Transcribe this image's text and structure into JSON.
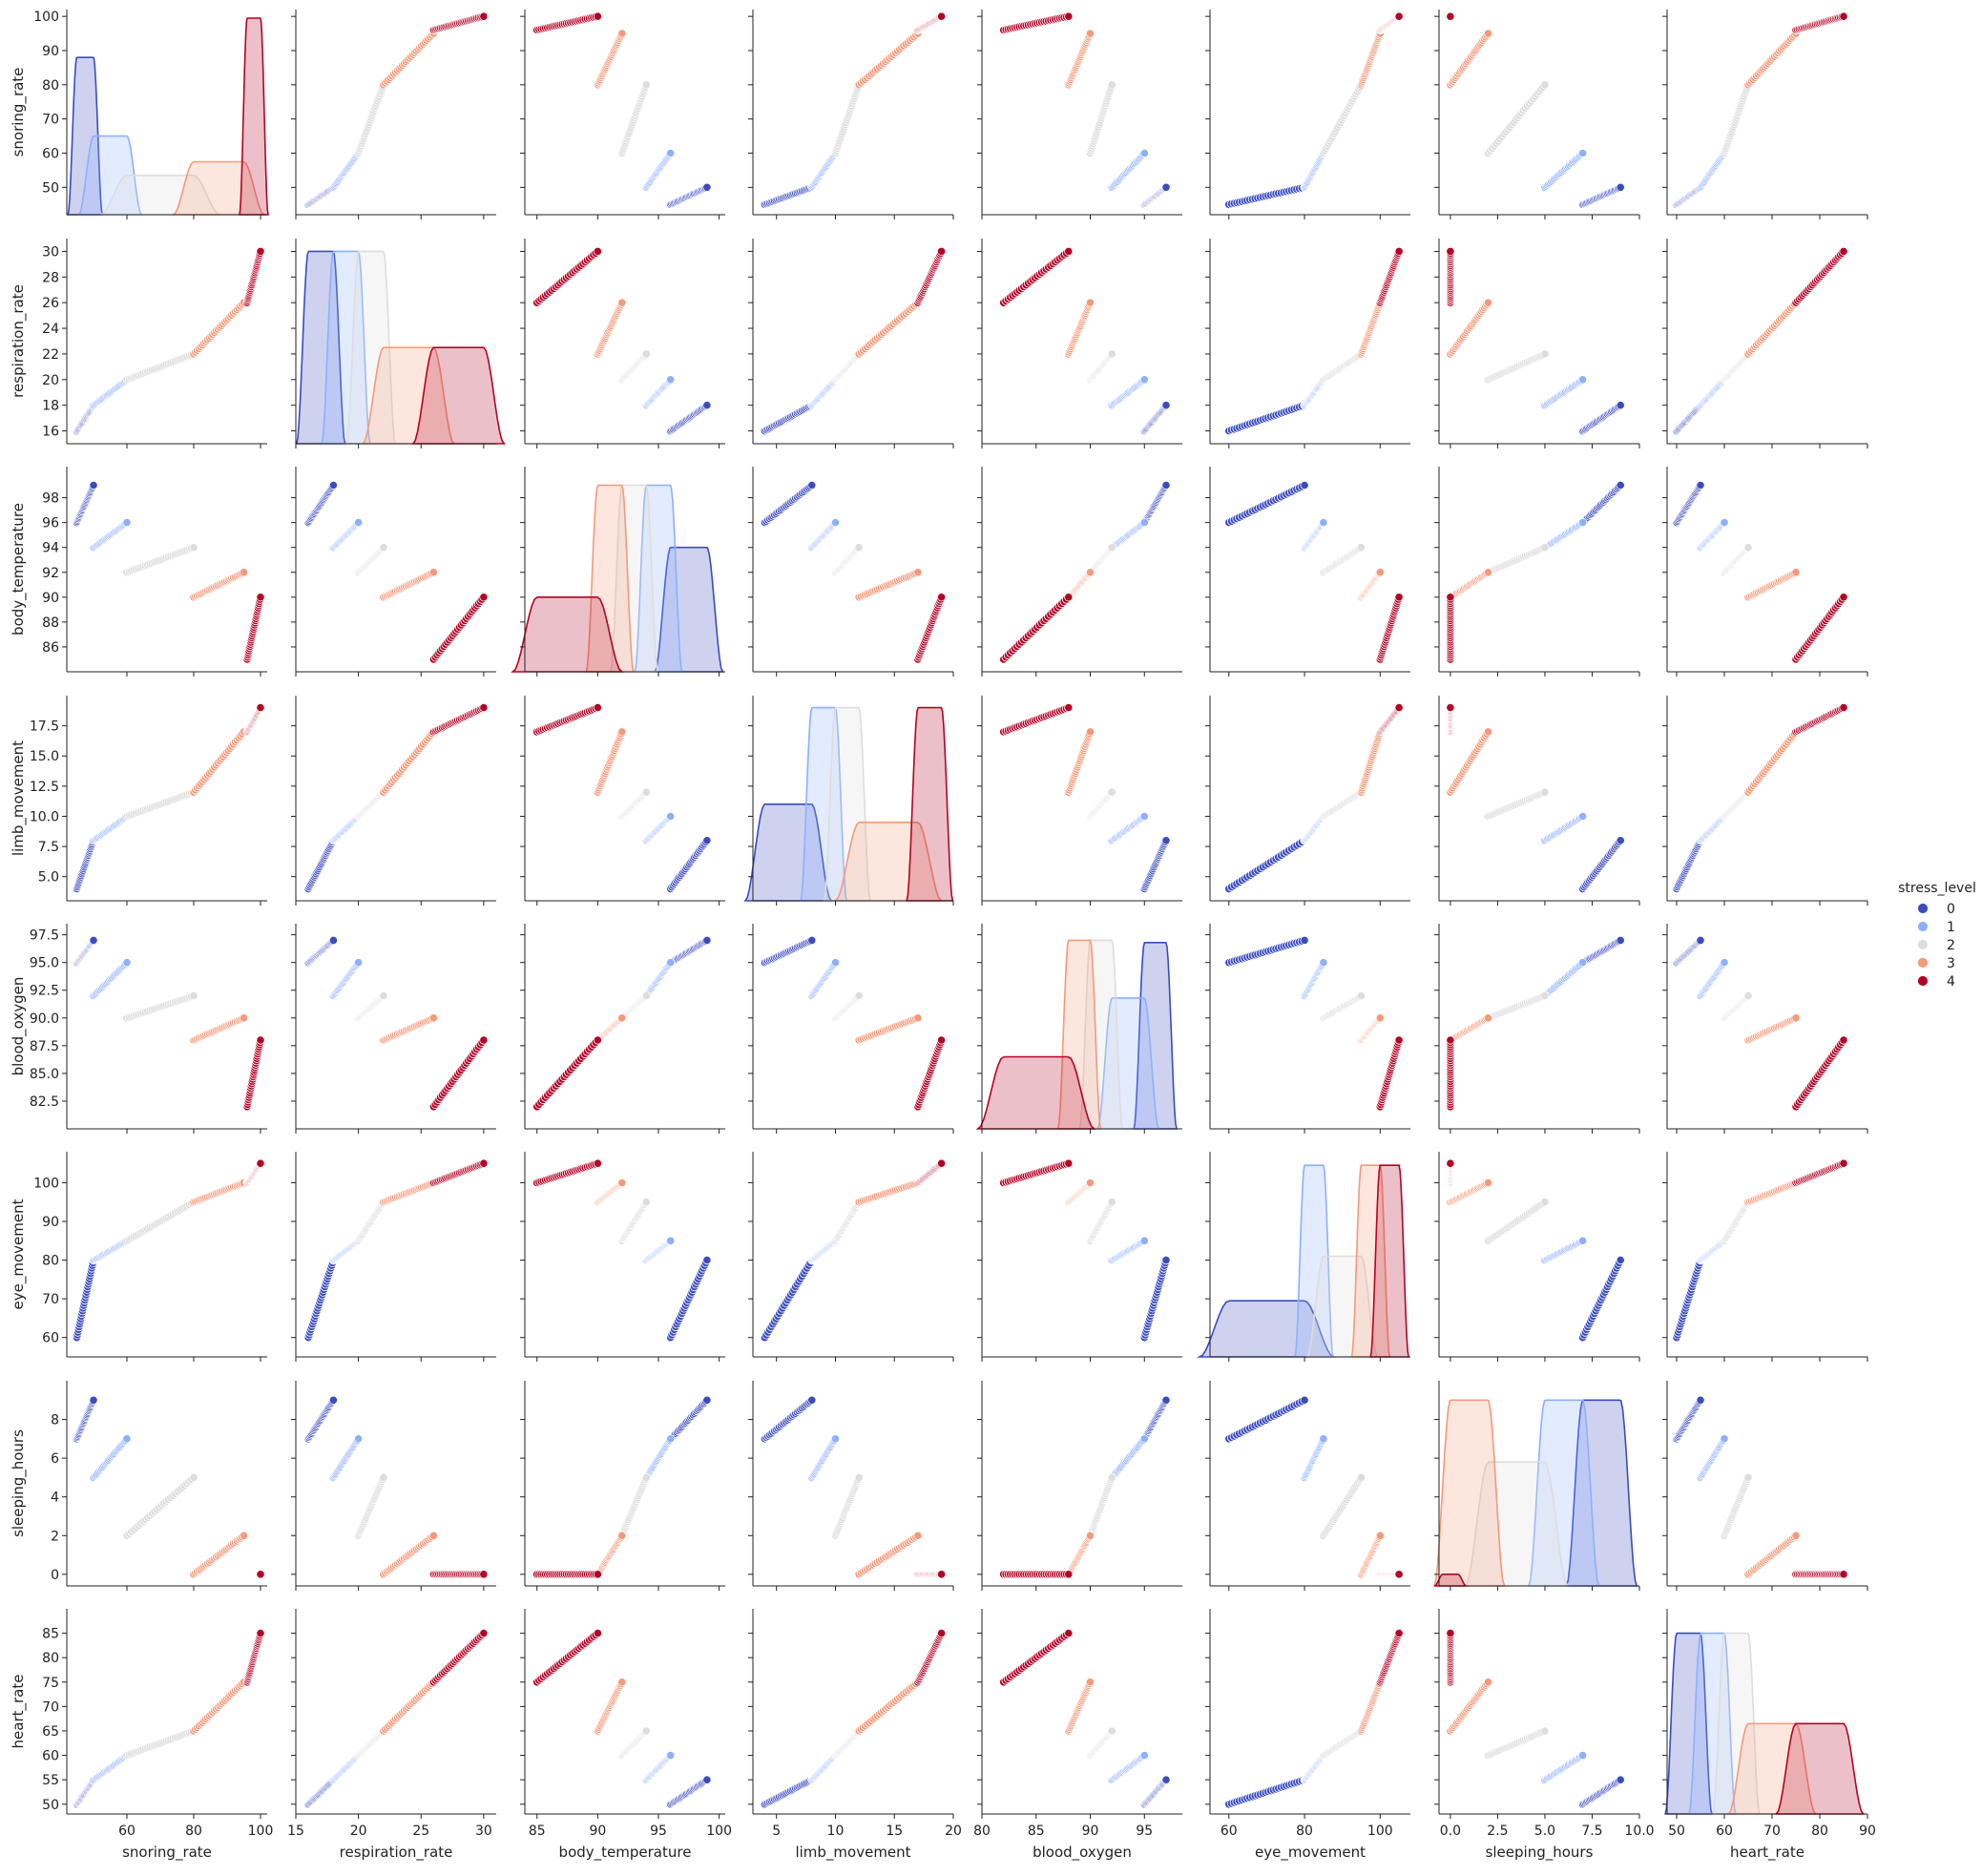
{
  "chart_data": {
    "type": "scatter",
    "variables": [
      {
        "name": "snoring_rate",
        "ticks": [
          60,
          80,
          100
        ],
        "ylim_ticks": [
          50,
          60,
          70,
          80,
          90,
          100
        ],
        "range": [
          42,
          102
        ]
      },
      {
        "name": "respiration_rate",
        "ticks": [
          15,
          20,
          25,
          30
        ],
        "ylim_ticks": [
          16,
          18,
          20,
          22,
          24,
          26,
          28,
          30
        ],
        "range": [
          15,
          31
        ]
      },
      {
        "name": "body_temperature",
        "ticks": [
          85,
          90,
          95,
          100
        ],
        "ylim_ticks": [
          86,
          88,
          90,
          92,
          94,
          96,
          98
        ],
        "range": [
          84,
          100.5
        ]
      },
      {
        "name": "limb_movement",
        "ticks": [
          5,
          10,
          15,
          20
        ],
        "ylim_ticks": [
          5.0,
          7.5,
          10.0,
          12.5,
          15.0,
          17.5
        ],
        "range": [
          3,
          20
        ]
      },
      {
        "name": "blood_oxygen",
        "ticks": [
          80,
          85,
          90,
          95
        ],
        "ylim_ticks": [
          82.5,
          85.0,
          87.5,
          90.0,
          92.5,
          95.0,
          97.5
        ],
        "range": [
          80,
          98.5
        ]
      },
      {
        "name": "eye_movement",
        "ticks": [
          60,
          80,
          100
        ],
        "ylim_ticks": [
          60,
          70,
          80,
          90,
          100
        ],
        "range": [
          55,
          108
        ]
      },
      {
        "name": "sleeping_hours",
        "ticks": [
          0.0,
          2.5,
          5.0,
          7.5,
          10.0
        ],
        "ylim_ticks": [
          0,
          2,
          4,
          6,
          8
        ],
        "range": [
          -0.6,
          10
        ]
      },
      {
        "name": "heart_rate",
        "ticks": [
          50,
          60,
          70,
          80,
          90
        ],
        "ylim_ticks": [
          50,
          55,
          60,
          65,
          70,
          75,
          80,
          85
        ],
        "range": [
          48,
          90
        ]
      }
    ],
    "series": [
      {
        "name": "0",
        "color": "#3b4cc0",
        "ranges": {
          "snoring_rate": [
            45,
            50
          ],
          "respiration_rate": [
            16,
            18
          ],
          "body_temperature": [
            96,
            99
          ],
          "limb_movement": [
            4,
            8
          ],
          "blood_oxygen": [
            95,
            97
          ],
          "eye_movement": [
            60,
            80
          ],
          "sleeping_hours": [
            7,
            9
          ],
          "heart_rate": [
            50,
            55
          ]
        },
        "kde_peak": {
          "snoring_rate": 88,
          "respiration_rate": 30,
          "body_temperature": 94,
          "limb_movement": 11,
          "blood_oxygen": 96.8,
          "eye_movement": 69.5,
          "sleeping_hours": 9,
          "heart_rate": 85
        }
      },
      {
        "name": "1",
        "color": "#8db0fe",
        "ranges": {
          "snoring_rate": [
            50,
            60
          ],
          "respiration_rate": [
            18,
            20
          ],
          "body_temperature": [
            94,
            96
          ],
          "limb_movement": [
            8,
            10
          ],
          "blood_oxygen": [
            92,
            95
          ],
          "eye_movement": [
            80,
            85
          ],
          "sleeping_hours": [
            5,
            7
          ],
          "heart_rate": [
            55,
            60
          ]
        },
        "kde_peak": {
          "snoring_rate": 65,
          "respiration_rate": 30,
          "body_temperature": 99,
          "limb_movement": 19,
          "blood_oxygen": 91.8,
          "eye_movement": 104.5,
          "sleeping_hours": 9,
          "heart_rate": 85
        }
      },
      {
        "name": "2",
        "color": "#dddddd",
        "ranges": {
          "snoring_rate": [
            60,
            80
          ],
          "respiration_rate": [
            20,
            22
          ],
          "body_temperature": [
            92,
            94
          ],
          "limb_movement": [
            10,
            12
          ],
          "blood_oxygen": [
            90,
            92
          ],
          "eye_movement": [
            85,
            95
          ],
          "sleeping_hours": [
            2,
            5
          ],
          "heart_rate": [
            60,
            65
          ]
        },
        "kde_peak": {
          "snoring_rate": 53.5,
          "respiration_rate": 30,
          "body_temperature": 99,
          "limb_movement": 19,
          "blood_oxygen": 97,
          "eye_movement": 81,
          "sleeping_hours": 5.8,
          "heart_rate": 85
        }
      },
      {
        "name": "3",
        "color": "#f49a7b",
        "ranges": {
          "snoring_rate": [
            80,
            95
          ],
          "respiration_rate": [
            22,
            26
          ],
          "body_temperature": [
            90,
            92
          ],
          "limb_movement": [
            12,
            17
          ],
          "blood_oxygen": [
            88,
            90
          ],
          "eye_movement": [
            95,
            100
          ],
          "sleeping_hours": [
            0,
            2
          ],
          "heart_rate": [
            65,
            75
          ]
        },
        "kde_peak": {
          "snoring_rate": 57.5,
          "respiration_rate": 22.5,
          "body_temperature": 99,
          "limb_movement": 9.5,
          "blood_oxygen": 97,
          "eye_movement": 104.5,
          "sleeping_hours": 9,
          "heart_rate": 66.5
        }
      },
      {
        "name": "4",
        "color": "#b40426",
        "ranges": {
          "snoring_rate": [
            96,
            100
          ],
          "respiration_rate": [
            26,
            30
          ],
          "body_temperature": [
            85,
            90
          ],
          "limb_movement": [
            17,
            19
          ],
          "blood_oxygen": [
            82,
            88
          ],
          "eye_movement": [
            100,
            105
          ],
          "sleeping_hours": [
            0,
            0
          ],
          "heart_rate": [
            75,
            85
          ]
        },
        "kde_peak": {
          "snoring_rate": 99.5,
          "respiration_rate": 22.5,
          "body_temperature": 90,
          "limb_movement": 19,
          "blood_oxygen": 86.5,
          "eye_movement": 104.5,
          "sleeping_hours": 0,
          "heart_rate": 66.5
        }
      }
    ],
    "legend": {
      "title": "stress_level",
      "placement": "center-right"
    },
    "grid": false
  }
}
